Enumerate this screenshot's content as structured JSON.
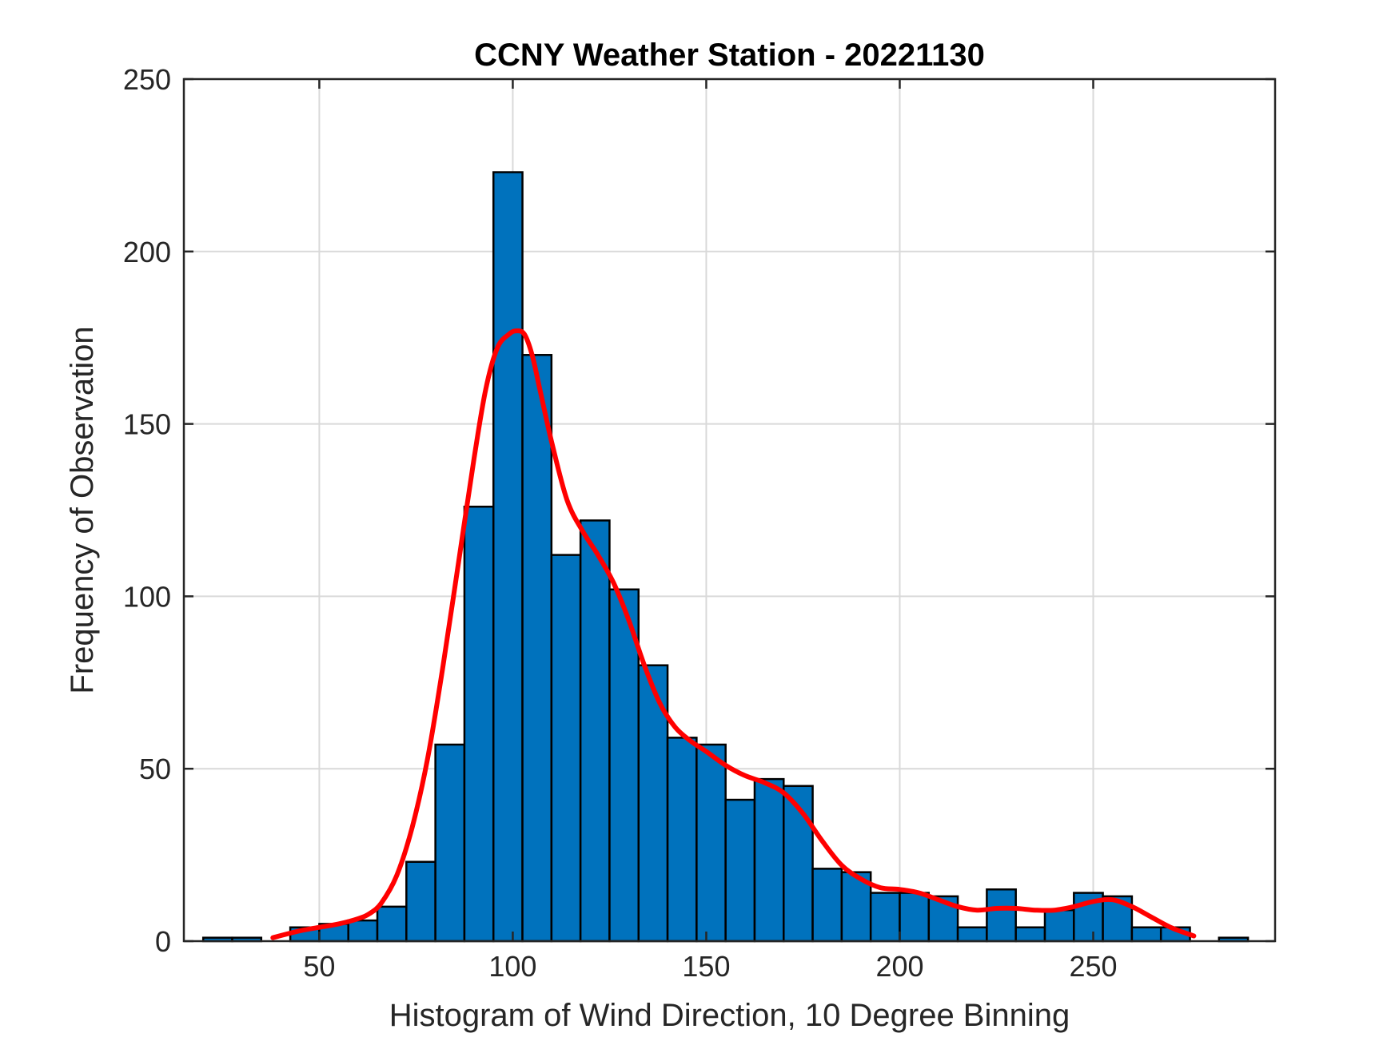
{
  "chart_data": {
    "type": "bar",
    "title": "CCNY Weather Station - 20221130",
    "xlabel": "Histogram of Wind Direction, 10 Degree Binning",
    "ylabel": "Frequency of Observation",
    "xlim": [
      15,
      297
    ],
    "ylim": [
      0,
      250
    ],
    "xticks": [
      50,
      100,
      150,
      200,
      250
    ],
    "yticks": [
      0,
      50,
      100,
      150,
      200,
      250
    ],
    "grid": true,
    "bin_width": 7.5,
    "bins": [
      {
        "start": 20.0,
        "value": 1
      },
      {
        "start": 27.5,
        "value": 1
      },
      {
        "start": 42.5,
        "value": 4
      },
      {
        "start": 50.0,
        "value": 5
      },
      {
        "start": 57.5,
        "value": 6
      },
      {
        "start": 65.0,
        "value": 10
      },
      {
        "start": 72.5,
        "value": 23
      },
      {
        "start": 80.0,
        "value": 57
      },
      {
        "start": 87.5,
        "value": 126
      },
      {
        "start": 95.0,
        "value": 223
      },
      {
        "start": 102.5,
        "value": 170
      },
      {
        "start": 110.0,
        "value": 112
      },
      {
        "start": 117.5,
        "value": 122
      },
      {
        "start": 125.0,
        "value": 102
      },
      {
        "start": 132.5,
        "value": 80
      },
      {
        "start": 140.0,
        "value": 59
      },
      {
        "start": 147.5,
        "value": 57
      },
      {
        "start": 155.0,
        "value": 41
      },
      {
        "start": 162.5,
        "value": 47
      },
      {
        "start": 170.0,
        "value": 45
      },
      {
        "start": 177.5,
        "value": 21
      },
      {
        "start": 185.0,
        "value": 20
      },
      {
        "start": 192.5,
        "value": 14
      },
      {
        "start": 200.0,
        "value": 14
      },
      {
        "start": 207.5,
        "value": 13
      },
      {
        "start": 215.0,
        "value": 4
      },
      {
        "start": 222.5,
        "value": 15
      },
      {
        "start": 230.0,
        "value": 4
      },
      {
        "start": 237.5,
        "value": 9
      },
      {
        "start": 245.0,
        "value": 14
      },
      {
        "start": 252.5,
        "value": 13
      },
      {
        "start": 260.0,
        "value": 4
      },
      {
        "start": 267.5,
        "value": 4
      },
      {
        "start": 282.5,
        "value": 1
      }
    ],
    "fit_curve": {
      "color": "#ff0000",
      "x": [
        38,
        45,
        50,
        55,
        60,
        63,
        66,
        70,
        74,
        78,
        82,
        86,
        90,
        93,
        96,
        99,
        101,
        103,
        105,
        107,
        110,
        114,
        118,
        122,
        126,
        130,
        134,
        138,
        142,
        146,
        150,
        155,
        160,
        165,
        170,
        175,
        180,
        185,
        190,
        195,
        200,
        205,
        210,
        215,
        220,
        225,
        230,
        235,
        240,
        245,
        250,
        255,
        260,
        265,
        270,
        276
      ],
      "y": [
        1,
        3,
        4,
        5,
        6.5,
        8,
        11,
        19,
        33,
        53,
        80,
        110,
        140,
        160,
        172,
        176,
        177,
        176,
        170,
        160,
        145,
        128,
        119,
        112,
        104,
        93,
        80,
        69,
        62,
        58,
        55,
        51,
        48,
        46,
        43,
        37,
        29,
        22,
        18,
        15.5,
        15,
        14,
        12,
        10,
        9,
        9.5,
        9.5,
        9,
        9,
        10,
        11.5,
        12,
        10,
        7,
        4,
        1.5
      ]
    },
    "colors": {
      "bar_fill": "#0072bd",
      "bar_edge": "#000000",
      "fit_line": "#ff0000",
      "grid": "#d9d9d9",
      "axis": "#262626"
    }
  }
}
